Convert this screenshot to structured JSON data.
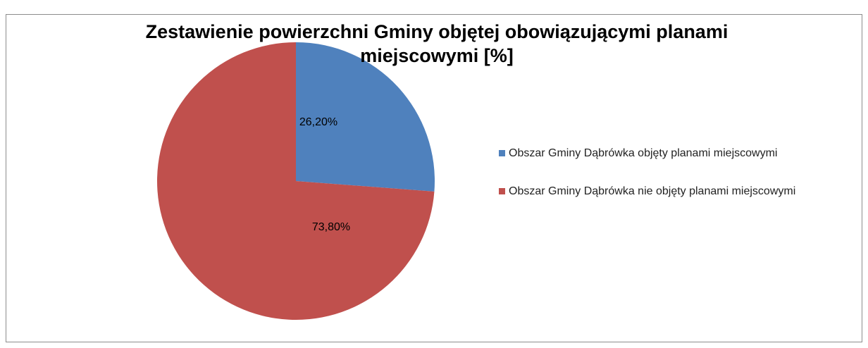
{
  "chart_data": {
    "type": "pie",
    "title": "Zestawienie powierzchni Gminy objętej obowiązującymi planami miejscowymi [%]",
    "categories": [
      "Obszar Gminy Dąbrówka objęty planami miejscowymi",
      "Obszar Gminy Dąbrówka nie objęty planami miejscowymi"
    ],
    "values": [
      26.2,
      73.8
    ],
    "value_labels": [
      "26,20%",
      "73,80%"
    ],
    "colors": [
      "#4f81bd",
      "#c0504d"
    ],
    "legend": "right"
  }
}
